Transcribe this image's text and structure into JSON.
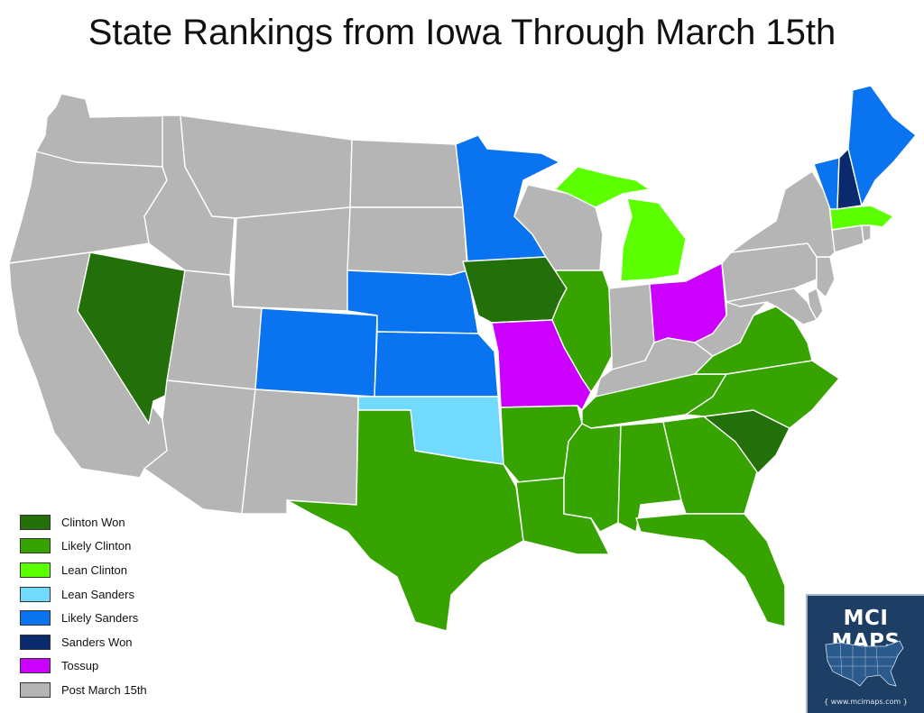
{
  "title": "State Rankings from Iowa Through March 15th",
  "categories": {
    "clinton_won": {
      "label": "Clinton Won",
      "color": "#236f0a"
    },
    "likely_clinton": {
      "label": "Likely Clinton",
      "color": "#37a300"
    },
    "lean_clinton": {
      "label": "Lean Clinton",
      "color": "#5cff00"
    },
    "lean_sanders": {
      "label": "Lean Sanders",
      "color": "#72dafc"
    },
    "likely_sanders": {
      "label": "Likely Sanders",
      "color": "#0a73f0"
    },
    "sanders_won": {
      "label": "Sanders Won",
      "color": "#0b2a6e"
    },
    "tossup": {
      "label": "Tossup",
      "color": "#cc00ff"
    },
    "post_march_15": {
      "label": "Post March 15th",
      "color": "#b5b5b5"
    }
  },
  "legend_order": [
    "clinton_won",
    "likely_clinton",
    "lean_clinton",
    "lean_sanders",
    "likely_sanders",
    "sanders_won",
    "tossup",
    "post_march_15"
  ],
  "states": {
    "WA": "post_march_15",
    "OR": "post_march_15",
    "CA": "post_march_15",
    "ID": "post_march_15",
    "MT": "post_march_15",
    "WY": "post_march_15",
    "UT": "post_march_15",
    "AZ": "post_march_15",
    "NM": "post_march_15",
    "ND": "post_march_15",
    "SD": "post_march_15",
    "WI": "post_march_15",
    "IN": "post_march_15",
    "KY": "post_march_15",
    "WV": "post_march_15",
    "PA": "post_march_15",
    "NY": "post_march_15",
    "NJ": "post_march_15",
    "DE": "post_march_15",
    "MD": "post_march_15",
    "CT": "post_march_15",
    "RI": "post_march_15",
    "NV": "clinton_won",
    "IA": "clinton_won",
    "SC": "clinton_won",
    "TX": "likely_clinton",
    "AR": "likely_clinton",
    "LA": "likely_clinton",
    "MS": "likely_clinton",
    "AL": "likely_clinton",
    "GA": "likely_clinton",
    "FL": "likely_clinton",
    "TN": "likely_clinton",
    "NC": "likely_clinton",
    "VA": "likely_clinton",
    "IL": "likely_clinton",
    "MI": "lean_clinton",
    "MA": "lean_clinton",
    "OK": "lean_sanders",
    "MN": "likely_sanders",
    "NE": "likely_sanders",
    "KS": "likely_sanders",
    "CO": "likely_sanders",
    "VT": "likely_sanders",
    "ME": "likely_sanders",
    "NH": "sanders_won",
    "MO": "tossup",
    "OH": "tossup"
  },
  "badge": {
    "brand": "MCI MAPS",
    "url": "{ www.mcimaps.com }"
  }
}
